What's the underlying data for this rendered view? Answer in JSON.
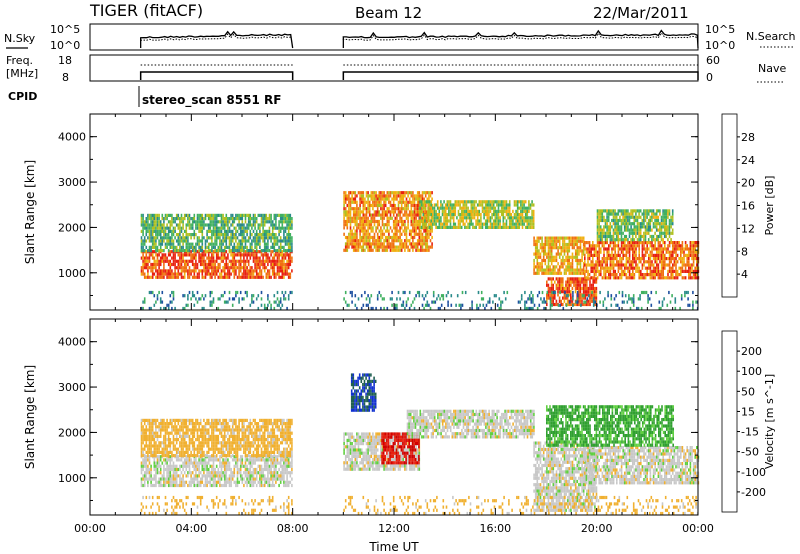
{
  "header": {
    "radar": "TIGER (fitACF)",
    "beam": "Beam 12",
    "date": "22/Mar/2011"
  },
  "top_panels": {
    "nsky_label": "N.Sky",
    "nsky_ticks": [
      "10^5",
      "10^0"
    ],
    "nsearch_label": "N.Search",
    "nsearch_ticks": [
      "10^5",
      "10^0"
    ],
    "freq_label_1": "Freq.",
    "freq_label_2": "[MHz]",
    "freq_ticks": [
      "18",
      "8"
    ],
    "nave_label": "Nave",
    "nave_ticks": [
      "60",
      "0"
    ],
    "cpid_label": "CPID",
    "cpid_value": "stereo_scan 8551 RF"
  },
  "chart_data": [
    {
      "type": "heatmap",
      "name": "Power",
      "ylabel": "Slant Range [km]",
      "yticks": [
        "1000",
        "2000",
        "3000",
        "4000"
      ],
      "xlabel": "Time UT",
      "xticks": [
        "00:00",
        "04:00",
        "08:00",
        "12:00",
        "16:00",
        "20:00",
        "00:00"
      ],
      "x_range_hours": [
        0,
        24
      ],
      "y_range_km": [
        180,
        4500
      ],
      "colorbar": {
        "label": "Power [dB]",
        "tick_labels": [
          "4",
          "8",
          "12",
          "16",
          "20",
          "24",
          "28"
        ],
        "colors": [
          "#1030e8",
          "#1e50a0",
          "#2a8a8a",
          "#40b060",
          "#b0c020",
          "#f0b010",
          "#f07010",
          "#e82010"
        ]
      },
      "data_intervals_hours": [
        [
          2.0,
          8.0
        ],
        [
          10.0,
          24.0
        ]
      ],
      "echo_bands": [
        {
          "t_start": 2.0,
          "t_end": 8.0,
          "range_km": [
            900,
            1500
          ],
          "power_db": 28
        },
        {
          "t_start": 2.0,
          "t_end": 8.0,
          "range_km": [
            1500,
            2300
          ],
          "power_db": 14
        },
        {
          "t_start": 10.0,
          "t_end": 13.5,
          "range_km": [
            1500,
            2800
          ],
          "power_db": 24
        },
        {
          "t_start": 13.0,
          "t_end": 17.5,
          "range_km": [
            2000,
            2600
          ],
          "power_db": 18
        },
        {
          "t_start": 17.5,
          "t_end": 19.5,
          "range_km": [
            1000,
            1800
          ],
          "power_db": 22
        },
        {
          "t_start": 18.0,
          "t_end": 20.0,
          "range_km": [
            300,
            900
          ],
          "power_db": 28
        },
        {
          "t_start": 19.5,
          "t_end": 24.0,
          "range_km": [
            900,
            1700
          ],
          "power_db": 26
        },
        {
          "t_start": 20.0,
          "t_end": 23.0,
          "range_km": [
            1700,
            2400
          ],
          "power_db": 16
        }
      ]
    },
    {
      "type": "heatmap",
      "name": "Velocity",
      "ylabel": "Slant Range [km]",
      "yticks": [
        "1000",
        "2000",
        "3000",
        "4000"
      ],
      "xlabel": "Time UT",
      "xticks": [
        "00:00",
        "04:00",
        "08:00",
        "12:00",
        "16:00",
        "20:00",
        "00:00"
      ],
      "x_range_hours": [
        0,
        24
      ],
      "y_range_km": [
        180,
        4500
      ],
      "colorbar": {
        "label": "Velocity [m s^-1]",
        "tick_labels": [
          "200",
          "100",
          "50",
          "15",
          "-15",
          "-50",
          "-100",
          "-200"
        ],
        "colors": [
          "#1030d0",
          "#206050",
          "#30a030",
          "#60d040",
          "#c8c8c8",
          "#f0b030",
          "#f07010",
          "#e82010",
          "#d00000"
        ]
      },
      "data_intervals_hours": [
        [
          2.0,
          8.0
        ],
        [
          10.0,
          24.0
        ]
      ],
      "echo_bands": [
        {
          "t_start": 2.0,
          "t_end": 8.0,
          "range_km": [
            850,
            1500
          ],
          "velocity": 0
        },
        {
          "t_start": 2.0,
          "t_end": 8.0,
          "range_km": [
            1500,
            2300
          ],
          "velocity": -30
        },
        {
          "t_start": 10.0,
          "t_end": 13.0,
          "range_km": [
            1200,
            2000
          ],
          "velocity": 0
        },
        {
          "t_start": 10.3,
          "t_end": 11.3,
          "range_km": [
            2500,
            3300
          ],
          "velocity": 200
        },
        {
          "t_start": 11.5,
          "t_end": 13.0,
          "range_km": [
            1300,
            2000
          ],
          "velocity": -200
        },
        {
          "t_start": 12.5,
          "t_end": 17.5,
          "range_km": [
            1900,
            2500
          ],
          "velocity": 0
        },
        {
          "t_start": 17.5,
          "t_end": 20.0,
          "range_km": [
            300,
            1800
          ],
          "velocity": 0
        },
        {
          "t_start": 19.5,
          "t_end": 24.0,
          "range_km": [
            900,
            1700
          ],
          "velocity": 0
        },
        {
          "t_start": 18.0,
          "t_end": 23.0,
          "range_km": [
            1700,
            2600
          ],
          "velocity": 60
        }
      ]
    }
  ]
}
